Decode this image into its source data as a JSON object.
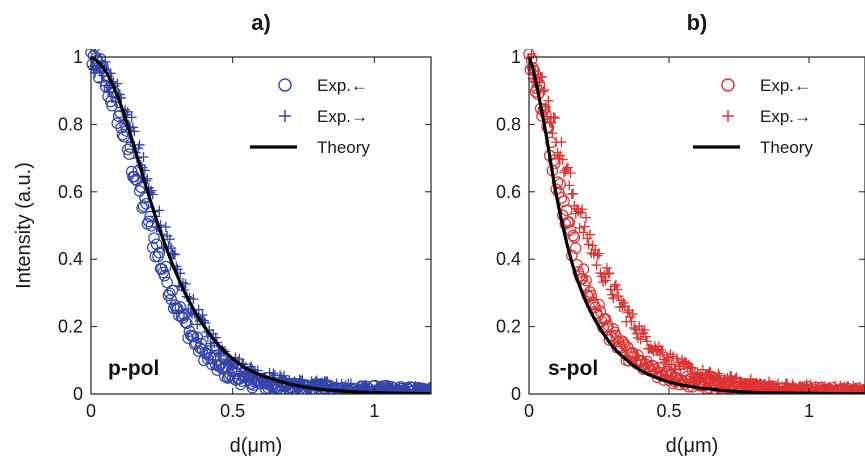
{
  "chart_data": [
    {
      "type": "scatter",
      "panel": "a)",
      "title": "a)",
      "annotation": "p-pol",
      "xlabel": "d(μm)",
      "ylabel": "Intensity (a.u.)",
      "xlim": [
        0,
        1.2
      ],
      "ylim": [
        0,
        1
      ],
      "xticks": [
        0,
        0.5,
        1
      ],
      "xtick_labels": [
        "0",
        "0.5",
        "1"
      ],
      "yticks": [
        0,
        0.2,
        0.4,
        0.6,
        0.8,
        1
      ],
      "ytick_labels": [
        "0",
        "0.2",
        "0.4",
        "0.6",
        "0.8",
        "1"
      ],
      "grid": false,
      "legend_position": "top-right",
      "color": "#3344aa",
      "series": [
        {
          "name": "Exp.←",
          "marker": "circle",
          "x": [
            0,
            0.05,
            0.1,
            0.15,
            0.2,
            0.25,
            0.3,
            0.35,
            0.4,
            0.45,
            0.5,
            0.55,
            0.6,
            0.7,
            0.8,
            0.9,
            1.0,
            1.1,
            1.2
          ],
          "y": [
            1.0,
            0.93,
            0.82,
            0.67,
            0.52,
            0.38,
            0.27,
            0.18,
            0.12,
            0.08,
            0.055,
            0.04,
            0.03,
            0.02,
            0.015,
            0.01,
            0.01,
            0.008,
            0.005
          ]
        },
        {
          "name": "Exp.→",
          "marker": "plus",
          "x": [
            0,
            0.05,
            0.1,
            0.15,
            0.2,
            0.25,
            0.3,
            0.35,
            0.4,
            0.45,
            0.5,
            0.55,
            0.6,
            0.7,
            0.8,
            0.9,
            1.0,
            1.1,
            1.2
          ],
          "y": [
            1.0,
            0.95,
            0.88,
            0.76,
            0.62,
            0.49,
            0.37,
            0.27,
            0.2,
            0.14,
            0.1,
            0.075,
            0.055,
            0.035,
            0.025,
            0.018,
            0.012,
            0.01,
            0.008
          ]
        },
        {
          "name": "Theory",
          "marker": "line",
          "x": [
            0,
            0.05,
            0.1,
            0.15,
            0.2,
            0.25,
            0.3,
            0.35,
            0.4,
            0.45,
            0.5,
            0.55,
            0.6,
            0.7,
            0.8,
            0.9,
            1.0,
            1.1,
            1.2
          ],
          "y": [
            1.0,
            0.96,
            0.87,
            0.74,
            0.6,
            0.47,
            0.36,
            0.27,
            0.2,
            0.145,
            0.105,
            0.075,
            0.055,
            0.03,
            0.015,
            0.008,
            0.004,
            0.002,
            0.001
          ]
        }
      ]
    },
    {
      "type": "scatter",
      "panel": "b)",
      "title": "b)",
      "annotation": "s-pol",
      "xlabel": "d(μm)",
      "ylabel": "",
      "xlim": [
        0,
        1.2
      ],
      "ylim": [
        0,
        1
      ],
      "xticks": [
        0,
        0.5,
        1
      ],
      "xtick_labels": [
        "0",
        "0.5",
        "1"
      ],
      "yticks": [
        0,
        0.2,
        0.4,
        0.6,
        0.8,
        1
      ],
      "ytick_labels": [
        "0",
        "0.2",
        "0.4",
        "0.6",
        "0.8",
        "1"
      ],
      "grid": false,
      "legend_position": "top-right",
      "color": "#dd3333",
      "series": [
        {
          "name": "Exp.←",
          "marker": "circle",
          "x": [
            0,
            0.05,
            0.1,
            0.15,
            0.2,
            0.25,
            0.3,
            0.35,
            0.4,
            0.45,
            0.5,
            0.55,
            0.6,
            0.7,
            0.8,
            0.9,
            1.0,
            1.1,
            1.2
          ],
          "y": [
            1.0,
            0.84,
            0.63,
            0.46,
            0.33,
            0.24,
            0.17,
            0.12,
            0.09,
            0.065,
            0.05,
            0.04,
            0.032,
            0.02,
            0.014,
            0.01,
            0.008,
            0.006,
            0.005
          ]
        },
        {
          "name": "Exp.→",
          "marker": "plus",
          "x": [
            0,
            0.05,
            0.1,
            0.15,
            0.2,
            0.25,
            0.3,
            0.35,
            0.4,
            0.45,
            0.5,
            0.55,
            0.6,
            0.7,
            0.8,
            0.9,
            1.0,
            1.1,
            1.2
          ],
          "y": [
            1.0,
            0.9,
            0.76,
            0.61,
            0.49,
            0.39,
            0.31,
            0.24,
            0.18,
            0.14,
            0.105,
            0.08,
            0.06,
            0.04,
            0.028,
            0.02,
            0.015,
            0.012,
            0.01
          ]
        },
        {
          "name": "Theory",
          "marker": "line",
          "x": [
            0,
            0.05,
            0.1,
            0.15,
            0.2,
            0.25,
            0.3,
            0.35,
            0.4,
            0.45,
            0.5,
            0.55,
            0.6,
            0.7,
            0.8,
            0.9,
            1.0,
            1.1,
            1.2
          ],
          "y": [
            1.0,
            0.82,
            0.58,
            0.4,
            0.28,
            0.2,
            0.14,
            0.1,
            0.07,
            0.05,
            0.036,
            0.026,
            0.019,
            0.01,
            0.005,
            0.003,
            0.002,
            0.001,
            0.0005
          ]
        }
      ]
    }
  ]
}
